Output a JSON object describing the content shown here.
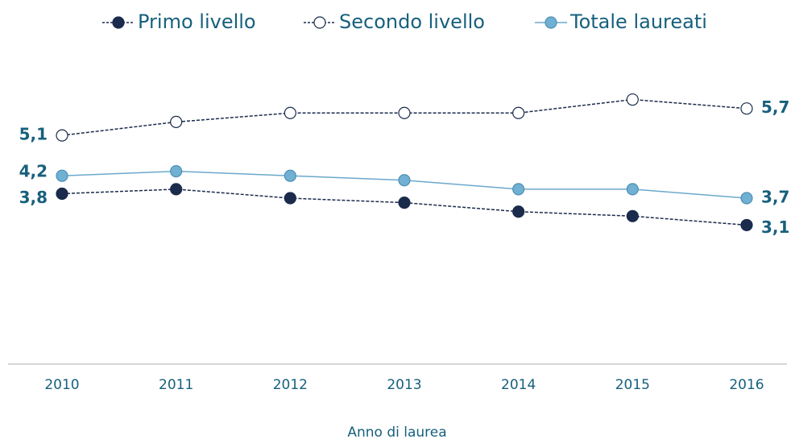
{
  "chart_data": {
    "type": "line",
    "x_label": "Anno di laurea",
    "categories": [
      "2010",
      "2011",
      "2012",
      "2013",
      "2014",
      "2015",
      "2016"
    ],
    "ylim": [
      0,
      6
    ],
    "series": [
      {
        "name": "Primo livello",
        "color": "#1a2b4c",
        "fill": "#1a2b4c",
        "dashed": true,
        "values": [
          3.8,
          3.9,
          3.7,
          3.6,
          3.4,
          3.3,
          3.1
        ],
        "value_labels": [
          "3,8",
          null,
          null,
          null,
          null,
          null,
          "3,1"
        ]
      },
      {
        "name": "Secondo livello",
        "color": "#1a2b4c",
        "fill": "#ffffff",
        "dashed": true,
        "values": [
          5.1,
          5.4,
          5.6,
          5.6,
          5.6,
          5.9,
          5.7
        ],
        "value_labels": [
          "5,1",
          null,
          null,
          null,
          null,
          null,
          "5,7"
        ]
      },
      {
        "name": "Totale laureati",
        "color": "#6aa9cc",
        "fill": "#6fb0d3",
        "dashed": false,
        "values": [
          4.2,
          4.3,
          4.2,
          4.1,
          3.9,
          3.9,
          3.7
        ],
        "value_labels": [
          "4,2",
          null,
          null,
          null,
          null,
          null,
          "3,7"
        ]
      }
    ]
  }
}
